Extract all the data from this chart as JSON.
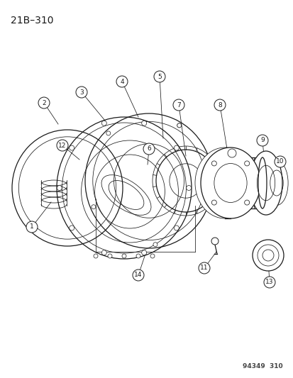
{
  "title": "21B–310",
  "footer": "94349  310",
  "bg_color": "#ffffff",
  "line_color": "#1a1a1a",
  "title_fontsize": 10,
  "footer_fontsize": 6.5,
  "label_fontsize": 6.5,
  "figure_width": 4.14,
  "figure_height": 5.33,
  "dpi": 100
}
